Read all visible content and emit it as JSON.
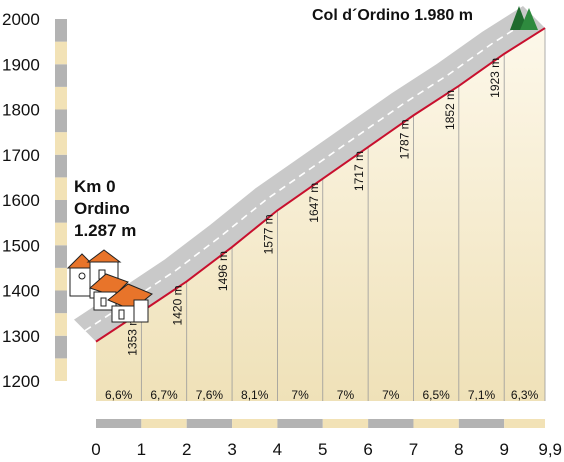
{
  "chart_data": {
    "type": "area",
    "title": "",
    "xlabel": "",
    "ylabel": "",
    "x_ticks": [
      "0",
      "1",
      "2",
      "3",
      "4",
      "5",
      "6",
      "7",
      "8",
      "9",
      "9,9"
    ],
    "y_ticks": [
      "1200",
      "1300",
      "1400",
      "1500",
      "1600",
      "1700",
      "1800",
      "1900",
      "2000"
    ],
    "xlim": [
      0,
      9.9
    ],
    "ylim": [
      1200,
      2000
    ],
    "x": [
      0,
      1,
      2,
      3,
      4,
      5,
      6,
      7,
      8,
      9,
      9.9
    ],
    "altitude": [
      1287,
      1353,
      1420,
      1496,
      1577,
      1647,
      1717,
      1787,
      1852,
      1923,
      1980
    ],
    "altitude_labels": [
      "1353 m",
      "1420 m",
      "1496 m",
      "1577 m",
      "1647 m",
      "1717 m",
      "1787 m",
      "1852 m",
      "1923 m"
    ],
    "gradients": [
      "6,6%",
      "6,7%",
      "7,6%",
      "8,1%",
      "7%",
      "7%",
      "7%",
      "6,5%",
      "7,1%",
      "6,3%"
    ],
    "start": {
      "km": "Km 0",
      "name": "Ordino",
      "altitude": "1.287 m"
    },
    "summit": {
      "label": "Col d´Ordino 1.980 m"
    },
    "colors": {
      "profile_line": "#c8102e",
      "road_band": "#c8c8c8",
      "axis_gray": "#b3b3b3",
      "axis_beige": "#f2e2b6",
      "tree": "#1f6b2e",
      "roof": "#e8742a"
    }
  }
}
